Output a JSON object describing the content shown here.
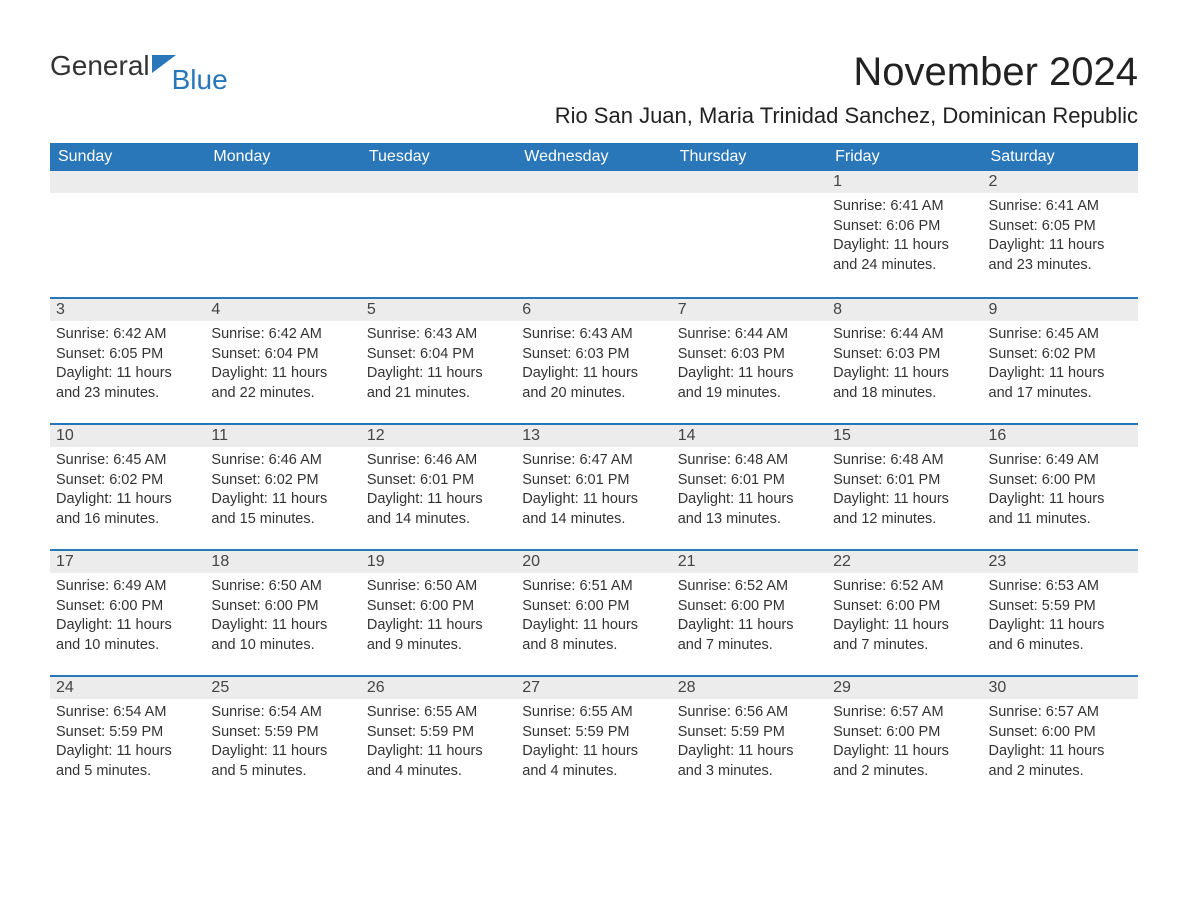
{
  "logo": {
    "part1": "General",
    "part2": "Blue"
  },
  "title": "November 2024",
  "subtitle": "Rio San Juan, Maria Trinidad Sanchez, Dominican Republic",
  "colors": {
    "header_bg": "#2976b9",
    "header_text": "#ffffff",
    "daynum_bg": "#ececec",
    "daynum_border": "#2976b9",
    "body_text": "#333333",
    "page_bg": "#ffffff"
  },
  "typography": {
    "title_fontsize": 40,
    "subtitle_fontsize": 22,
    "weekday_fontsize": 16,
    "daynum_fontsize": 16,
    "cell_fontsize": 14.5
  },
  "weekdays": [
    "Sunday",
    "Monday",
    "Tuesday",
    "Wednesday",
    "Thursday",
    "Friday",
    "Saturday"
  ],
  "weeks": [
    [
      null,
      null,
      null,
      null,
      null,
      {
        "day": "1",
        "sunrise": "Sunrise: 6:41 AM",
        "sunset": "Sunset: 6:06 PM",
        "daylight": "Daylight: 11 hours and 24 minutes."
      },
      {
        "day": "2",
        "sunrise": "Sunrise: 6:41 AM",
        "sunset": "Sunset: 6:05 PM",
        "daylight": "Daylight: 11 hours and 23 minutes."
      }
    ],
    [
      {
        "day": "3",
        "sunrise": "Sunrise: 6:42 AM",
        "sunset": "Sunset: 6:05 PM",
        "daylight": "Daylight: 11 hours and 23 minutes."
      },
      {
        "day": "4",
        "sunrise": "Sunrise: 6:42 AM",
        "sunset": "Sunset: 6:04 PM",
        "daylight": "Daylight: 11 hours and 22 minutes."
      },
      {
        "day": "5",
        "sunrise": "Sunrise: 6:43 AM",
        "sunset": "Sunset: 6:04 PM",
        "daylight": "Daylight: 11 hours and 21 minutes."
      },
      {
        "day": "6",
        "sunrise": "Sunrise: 6:43 AM",
        "sunset": "Sunset: 6:03 PM",
        "daylight": "Daylight: 11 hours and 20 minutes."
      },
      {
        "day": "7",
        "sunrise": "Sunrise: 6:44 AM",
        "sunset": "Sunset: 6:03 PM",
        "daylight": "Daylight: 11 hours and 19 minutes."
      },
      {
        "day": "8",
        "sunrise": "Sunrise: 6:44 AM",
        "sunset": "Sunset: 6:03 PM",
        "daylight": "Daylight: 11 hours and 18 minutes."
      },
      {
        "day": "9",
        "sunrise": "Sunrise: 6:45 AM",
        "sunset": "Sunset: 6:02 PM",
        "daylight": "Daylight: 11 hours and 17 minutes."
      }
    ],
    [
      {
        "day": "10",
        "sunrise": "Sunrise: 6:45 AM",
        "sunset": "Sunset: 6:02 PM",
        "daylight": "Daylight: 11 hours and 16 minutes."
      },
      {
        "day": "11",
        "sunrise": "Sunrise: 6:46 AM",
        "sunset": "Sunset: 6:02 PM",
        "daylight": "Daylight: 11 hours and 15 minutes."
      },
      {
        "day": "12",
        "sunrise": "Sunrise: 6:46 AM",
        "sunset": "Sunset: 6:01 PM",
        "daylight": "Daylight: 11 hours and 14 minutes."
      },
      {
        "day": "13",
        "sunrise": "Sunrise: 6:47 AM",
        "sunset": "Sunset: 6:01 PM",
        "daylight": "Daylight: 11 hours and 14 minutes."
      },
      {
        "day": "14",
        "sunrise": "Sunrise: 6:48 AM",
        "sunset": "Sunset: 6:01 PM",
        "daylight": "Daylight: 11 hours and 13 minutes."
      },
      {
        "day": "15",
        "sunrise": "Sunrise: 6:48 AM",
        "sunset": "Sunset: 6:01 PM",
        "daylight": "Daylight: 11 hours and 12 minutes."
      },
      {
        "day": "16",
        "sunrise": "Sunrise: 6:49 AM",
        "sunset": "Sunset: 6:00 PM",
        "daylight": "Daylight: 11 hours and 11 minutes."
      }
    ],
    [
      {
        "day": "17",
        "sunrise": "Sunrise: 6:49 AM",
        "sunset": "Sunset: 6:00 PM",
        "daylight": "Daylight: 11 hours and 10 minutes."
      },
      {
        "day": "18",
        "sunrise": "Sunrise: 6:50 AM",
        "sunset": "Sunset: 6:00 PM",
        "daylight": "Daylight: 11 hours and 10 minutes."
      },
      {
        "day": "19",
        "sunrise": "Sunrise: 6:50 AM",
        "sunset": "Sunset: 6:00 PM",
        "daylight": "Daylight: 11 hours and 9 minutes."
      },
      {
        "day": "20",
        "sunrise": "Sunrise: 6:51 AM",
        "sunset": "Sunset: 6:00 PM",
        "daylight": "Daylight: 11 hours and 8 minutes."
      },
      {
        "day": "21",
        "sunrise": "Sunrise: 6:52 AM",
        "sunset": "Sunset: 6:00 PM",
        "daylight": "Daylight: 11 hours and 7 minutes."
      },
      {
        "day": "22",
        "sunrise": "Sunrise: 6:52 AM",
        "sunset": "Sunset: 6:00 PM",
        "daylight": "Daylight: 11 hours and 7 minutes."
      },
      {
        "day": "23",
        "sunrise": "Sunrise: 6:53 AM",
        "sunset": "Sunset: 5:59 PM",
        "daylight": "Daylight: 11 hours and 6 minutes."
      }
    ],
    [
      {
        "day": "24",
        "sunrise": "Sunrise: 6:54 AM",
        "sunset": "Sunset: 5:59 PM",
        "daylight": "Daylight: 11 hours and 5 minutes."
      },
      {
        "day": "25",
        "sunrise": "Sunrise: 6:54 AM",
        "sunset": "Sunset: 5:59 PM",
        "daylight": "Daylight: 11 hours and 5 minutes."
      },
      {
        "day": "26",
        "sunrise": "Sunrise: 6:55 AM",
        "sunset": "Sunset: 5:59 PM",
        "daylight": "Daylight: 11 hours and 4 minutes."
      },
      {
        "day": "27",
        "sunrise": "Sunrise: 6:55 AM",
        "sunset": "Sunset: 5:59 PM",
        "daylight": "Daylight: 11 hours and 4 minutes."
      },
      {
        "day": "28",
        "sunrise": "Sunrise: 6:56 AM",
        "sunset": "Sunset: 5:59 PM",
        "daylight": "Daylight: 11 hours and 3 minutes."
      },
      {
        "day": "29",
        "sunrise": "Sunrise: 6:57 AM",
        "sunset": "Sunset: 6:00 PM",
        "daylight": "Daylight: 11 hours and 2 minutes."
      },
      {
        "day": "30",
        "sunrise": "Sunrise: 6:57 AM",
        "sunset": "Sunset: 6:00 PM",
        "daylight": "Daylight: 11 hours and 2 minutes."
      }
    ]
  ]
}
